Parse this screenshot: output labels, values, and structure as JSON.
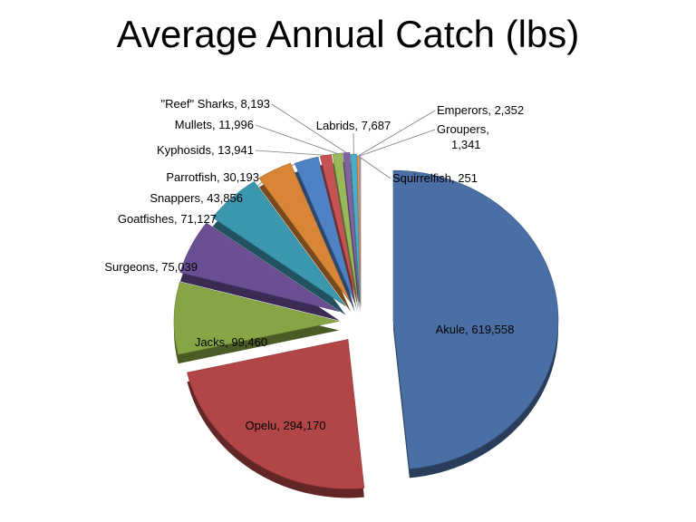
{
  "chart_data": {
    "type": "pie",
    "title": "Average Annual Catch (lbs)",
    "exploded": true,
    "three_d": true,
    "slices": [
      {
        "name": "Akule",
        "value": 619558,
        "label": "Akule, 619,558",
        "color": "#4a6fa5"
      },
      {
        "name": "Opelu",
        "value": 294170,
        "label": "Opelu, 294,170",
        "color": "#b24545"
      },
      {
        "name": "Jacks",
        "value": 99460,
        "label": "Jacks, 99,460",
        "color": "#86a544"
      },
      {
        "name": "Surgeons",
        "value": 75039,
        "label": "Surgeons, 75,039",
        "color": "#6b4f95"
      },
      {
        "name": "Goatfishes",
        "value": 71127,
        "label": "Goatfishes, 71,127",
        "color": "#3a97ad"
      },
      {
        "name": "Snappers",
        "value": 43856,
        "label": "Snappers, 43,856",
        "color": "#d98536"
      },
      {
        "name": "Parrotfish",
        "value": 30193,
        "label": "Parrotfish, 30,193",
        "color": "#4f82c4"
      },
      {
        "name": "Kyphosids",
        "value": 13941,
        "label": "Kyphosids, 13,941",
        "color": "#c65353"
      },
      {
        "name": "Mullets",
        "value": 11996,
        "label": "Mullets, 11,996",
        "color": "#9ab85a"
      },
      {
        "name": "\"Reef\" Sharks",
        "value": 8193,
        "label": "\"Reef\" Sharks, 8,193",
        "color": "#8064a2"
      },
      {
        "name": "Labrids",
        "value": 7687,
        "label": "Labrids, 7,687",
        "color": "#4bacc6"
      },
      {
        "name": "Emperors",
        "value": 2352,
        "label": "Emperors, 2,352",
        "color": "#f79646"
      },
      {
        "name": "Groupers",
        "value": 1341,
        "label": "Groupers,\n1,341",
        "color": "#9db7d9"
      },
      {
        "name": "Squirrelfish",
        "value": 251,
        "label": "Squirrelfish, 251",
        "color": "#d99795"
      }
    ]
  }
}
